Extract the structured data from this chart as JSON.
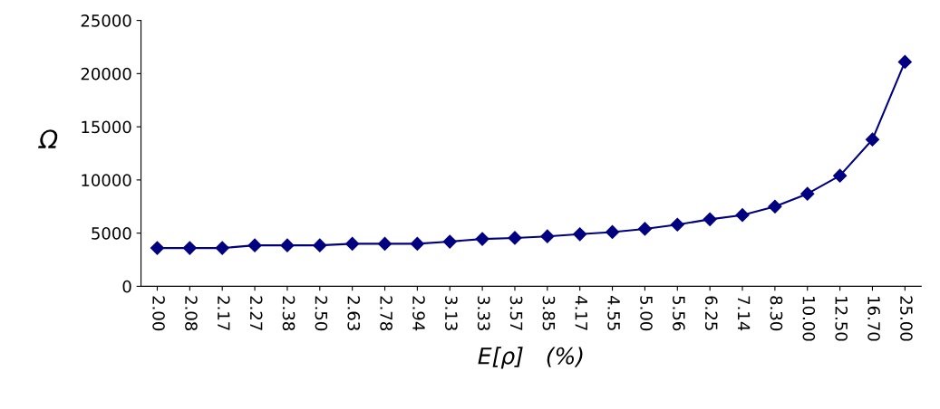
{
  "chart_data": {
    "type": "line",
    "xlabel": "E[ρ]   (%)",
    "ylabel": "Ω",
    "categories": [
      "2.00",
      "2.08",
      "2.17",
      "2.27",
      "2.38",
      "2.50",
      "2.63",
      "2.78",
      "2.94",
      "3.13",
      "3.33",
      "3.57",
      "3.85",
      "4.17",
      "4.55",
      "5.00",
      "5.56",
      "6.25",
      "7.14",
      "8.30",
      "10.00",
      "12.50",
      "16.70",
      "25.00"
    ],
    "series": [
      {
        "color": "#000080",
        "values": [
          3600,
          3600,
          3600,
          3850,
          3850,
          3850,
          4000,
          4000,
          4000,
          4200,
          4450,
          4550,
          4700,
          4900,
          5100,
          5400,
          5800,
          6300,
          6700,
          7500,
          8700,
          10400,
          13800,
          21100
        ]
      }
    ],
    "ylim": [
      0,
      25000
    ],
    "yticks": [
      0,
      5000,
      10000,
      15000,
      20000,
      25000
    ],
    "grid": false,
    "legend": false,
    "marker": "diamond",
    "line_style": "solid"
  }
}
